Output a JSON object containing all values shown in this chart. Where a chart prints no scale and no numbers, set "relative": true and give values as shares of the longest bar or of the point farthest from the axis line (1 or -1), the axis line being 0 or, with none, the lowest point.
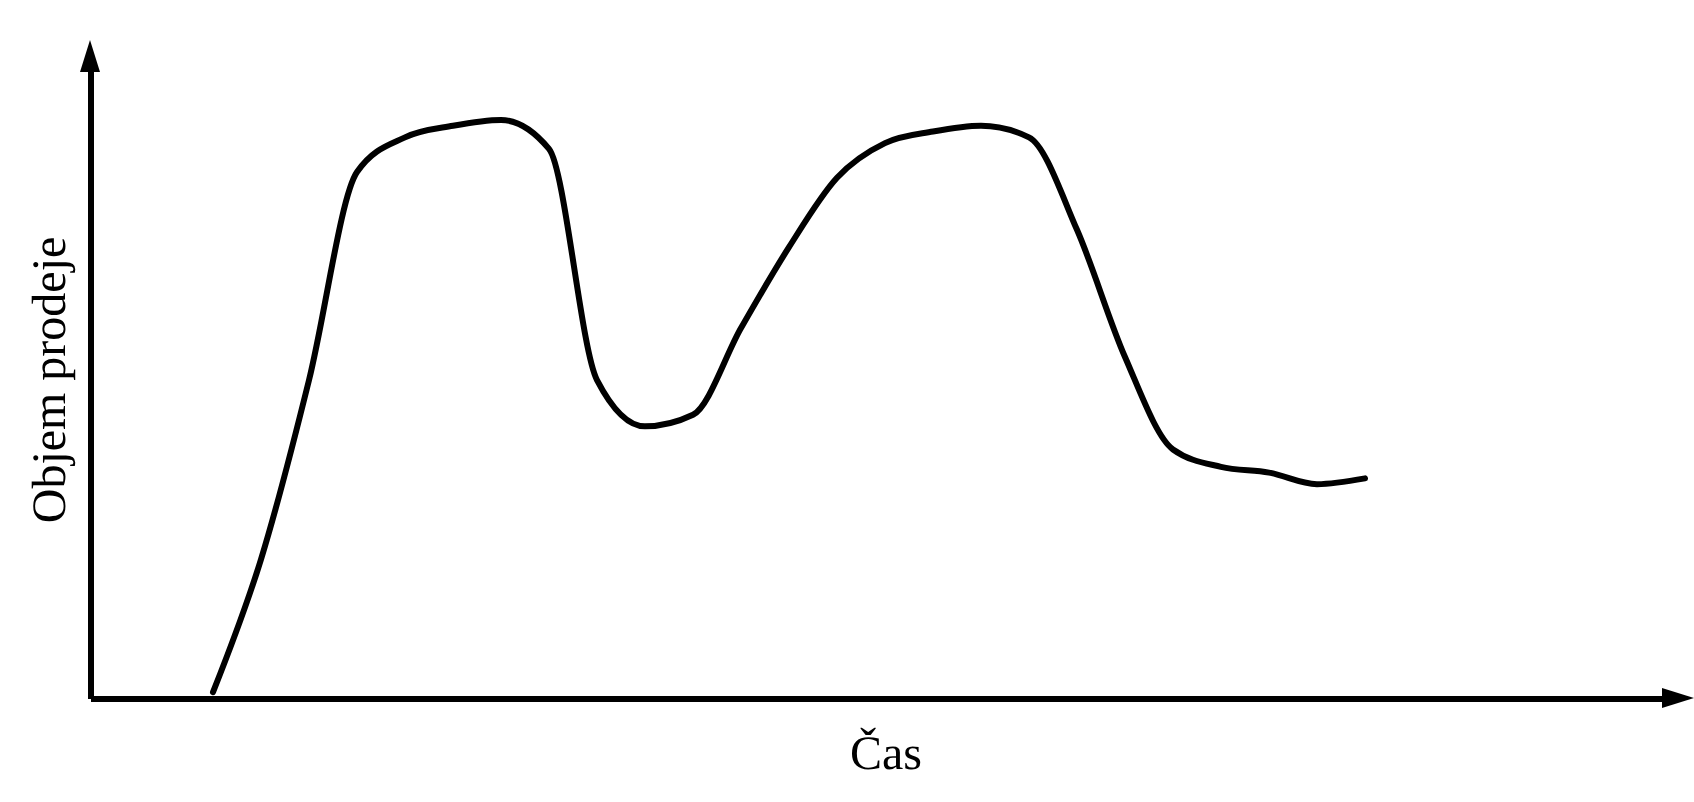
{
  "chart_data": {
    "type": "line",
    "relative": true,
    "xlabel": "Čas",
    "ylabel": "Objem prodeje",
    "grid": false,
    "legend": false,
    "marker": "none",
    "line_style": "solid",
    "categories": [
      null,
      null,
      null,
      null,
      null,
      null,
      null,
      null,
      null,
      null,
      null,
      null,
      null,
      null,
      null,
      null,
      null,
      null,
      null,
      null,
      null,
      null,
      null,
      null,
      null,
      null,
      null,
      null,
      null,
      null,
      null,
      null,
      null
    ],
    "series": [
      {
        "color": "#000000",
        "values": [
          null,
          null,
          0.01,
          0.24,
          0.55,
          0.91,
          0.97,
          0.99,
          1,
          0.95,
          0.55,
          0.47,
          0.49,
          0.64,
          0.78,
          0.9,
          0.96,
          0.98,
          0.99,
          0.97,
          0.81,
          0.59,
          0.43,
          0.4,
          0.39,
          0.37,
          0.38,
          null,
          null,
          null,
          null,
          null,
          null
        ]
      }
    ]
  }
}
